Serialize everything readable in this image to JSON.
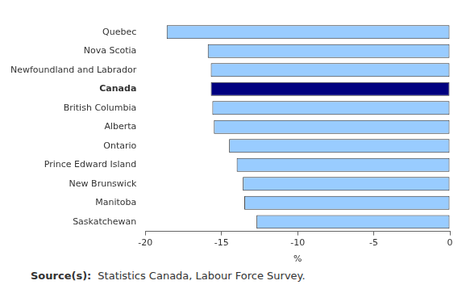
{
  "chart_data": {
    "type": "bar",
    "orientation": "horizontal",
    "categories": [
      "Quebec",
      "Nova Scotia",
      "Newfoundland and Labrador",
      "Canada",
      "British Columbia",
      "Alberta",
      "Ontario",
      "Prince Edward Island",
      "New Brunswick",
      "Manitoba",
      "Saskatchewan"
    ],
    "values": [
      -18.6,
      -15.9,
      -15.7,
      -15.7,
      -15.6,
      -15.5,
      -14.5,
      -14.0,
      -13.6,
      -13.5,
      -12.7
    ],
    "colors": [
      "#99ccff",
      "#99ccff",
      "#99ccff",
      "#000080",
      "#99ccff",
      "#99ccff",
      "#99ccff",
      "#99ccff",
      "#99ccff",
      "#99ccff",
      "#99ccff"
    ],
    "xlabel": "%",
    "xlim": [
      -20,
      0
    ],
    "xticks": [
      -20,
      -15,
      -10,
      -5,
      0
    ],
    "grid": false
  },
  "footer": {
    "label": "Source(s):",
    "text": "Statistics Canada, Labour Force Survey."
  }
}
